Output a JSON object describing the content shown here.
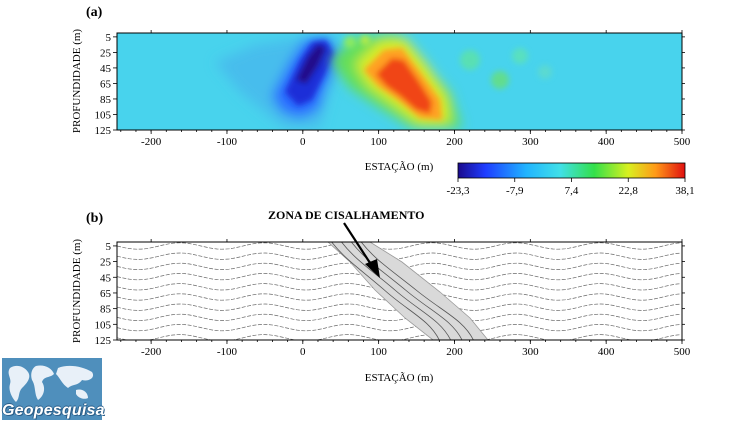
{
  "panel_a": {
    "label": "(a)",
    "ylabel": "PROFUNDIDADE (m)",
    "xlabel": "ESTAÇÃO (m)"
  },
  "panel_b": {
    "label": "(b)",
    "ylabel": "PROFUNDIDADE (m)",
    "xlabel": "ESTAÇÃO (m)",
    "annotation": "ZONA DE CISALHAMENTO"
  },
  "colorbar": {
    "ticks": [
      "-23,3",
      "-7,9",
      "7,4",
      "22,8",
      "38,1"
    ],
    "min": -23.3,
    "max": 38.1
  },
  "logo": {
    "text": "Geopesquisa"
  },
  "chart_data": [
    {
      "type": "heatmap",
      "title": "",
      "xlabel": "ESTAÇÃO (m)",
      "ylabel": "PROFUNDIDADE (m)",
      "x_ticks": [
        "-200",
        "-100",
        "0",
        "100",
        "200",
        "300",
        "400",
        "500"
      ],
      "x_tick_values": [
        -200,
        -100,
        0,
        100,
        200,
        300,
        400,
        500
      ],
      "y_ticks": [
        "5",
        "25",
        "45",
        "65",
        "85",
        "105",
        "125"
      ],
      "y_tick_values": [
        5,
        25,
        45,
        65,
        85,
        105,
        125
      ],
      "xlim": [
        -245,
        500
      ],
      "ylim": [
        125,
        0
      ],
      "value_range": [
        -23.3,
        38.1
      ],
      "anomalies": [
        {
          "kind": "negative",
          "x_range": [
            -40,
            40
          ],
          "depth_range": [
            0,
            125
          ],
          "peak": -23.3
        },
        {
          "kind": "positive",
          "x_range": [
            60,
            200
          ],
          "depth_range": [
            0,
            125
          ],
          "peak": 38.1
        }
      ]
    },
    {
      "type": "diagram",
      "title": "",
      "xlabel": "ESTAÇÃO (m)",
      "ylabel": "PROFUNDIDADE (m)",
      "x_ticks": [
        "-200",
        "-100",
        "0",
        "100",
        "200",
        "300",
        "400",
        "500"
      ],
      "x_tick_values": [
        -200,
        -100,
        0,
        100,
        200,
        300,
        400,
        500
      ],
      "y_ticks": [
        "5",
        "25",
        "45",
        "65",
        "85",
        "105",
        "125"
      ],
      "y_tick_values": [
        5,
        25,
        45,
        65,
        85,
        105,
        125
      ],
      "xlim": [
        -245,
        500
      ],
      "ylim": [
        125,
        0
      ],
      "shear_zone": {
        "top_x_range": [
          25,
          90
        ],
        "bottom_x_range": [
          165,
          240
        ]
      }
    }
  ]
}
